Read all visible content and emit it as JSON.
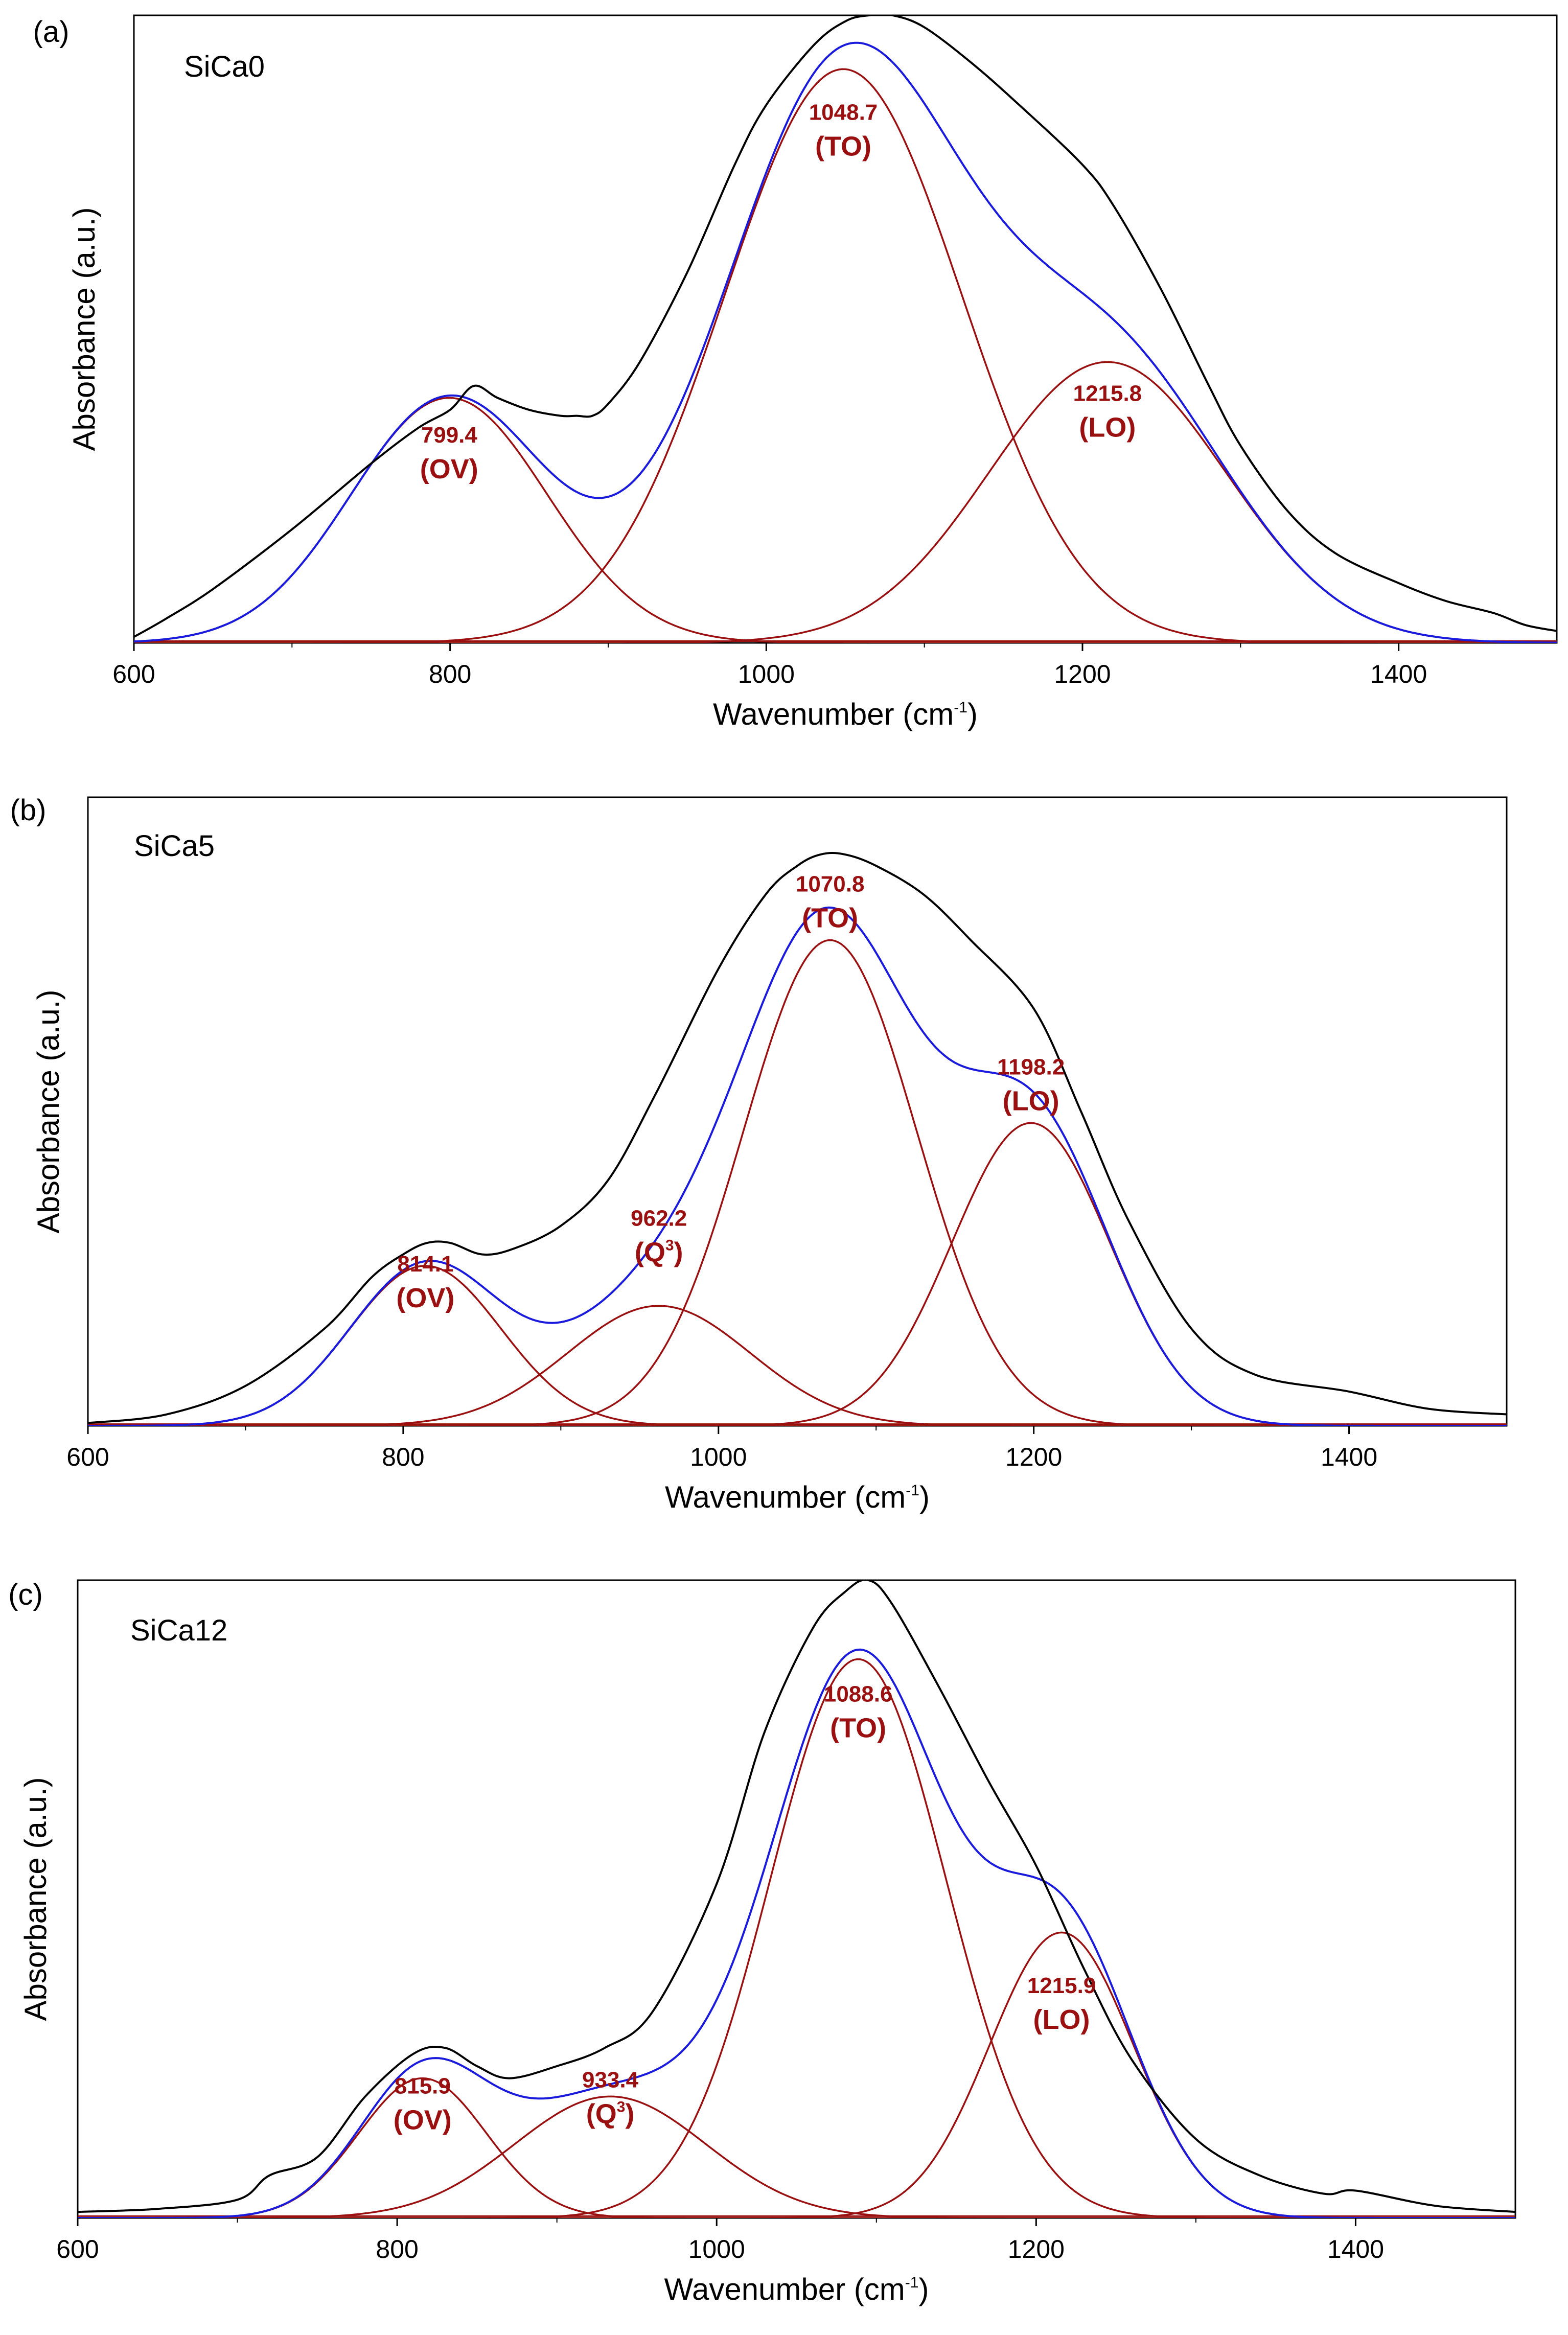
{
  "colors": {
    "measured": "#000000",
    "fit_envelope": "#1a1adc",
    "component": "#9a1010",
    "axis": "#000000"
  },
  "chart_data": [
    {
      "type": "line",
      "panel": "(a)",
      "sample": "SiCa0",
      "xlabel": "Wavenumber (cm",
      "xlabel_sup": "-1",
      "xlabel_end": ")",
      "ylabel": "Absorbance (a.u.)",
      "xlim": [
        600,
        1500
      ],
      "ylim": [
        0,
        1.05
      ],
      "xticks": [
        600,
        800,
        1000,
        1200,
        1400
      ],
      "xtick_labels": [
        "600",
        "800",
        "1000",
        "1200",
        "1400"
      ],
      "components": [
        {
          "center": 799.4,
          "height": 0.41,
          "sigma": 62,
          "label": "799.4",
          "tag": "(OV)",
          "tag_sup": ""
        },
        {
          "center": 1048.7,
          "height": 0.96,
          "sigma": 75,
          "label": "1048.7",
          "tag": "(TO)",
          "tag_sup": ""
        },
        {
          "center": 1215.8,
          "height": 0.47,
          "sigma": 75,
          "label": "1215.8",
          "tag": "(LO)",
          "tag_sup": ""
        }
      ],
      "measured": {
        "x": [
          600,
          620,
          650,
          700,
          750,
          780,
          800,
          815,
          830,
          850,
          870,
          880,
          890,
          900,
          920,
          950,
          980,
          1000,
          1030,
          1050,
          1065,
          1080,
          1100,
          1130,
          1160,
          1200,
          1220,
          1250,
          1280,
          1300,
          1330,
          1360,
          1400,
          1430,
          1460,
          1480,
          1500
        ],
        "y": [
          0.01,
          0.04,
          0.09,
          0.19,
          0.3,
          0.36,
          0.39,
          0.43,
          0.41,
          0.39,
          0.38,
          0.38,
          0.38,
          0.4,
          0.47,
          0.62,
          0.8,
          0.9,
          1.0,
          1.04,
          1.05,
          1.05,
          1.03,
          0.97,
          0.9,
          0.8,
          0.73,
          0.59,
          0.43,
          0.33,
          0.22,
          0.15,
          0.1,
          0.07,
          0.05,
          0.03,
          0.02
        ]
      },
      "annotation_anchors": [
        {
          "x": 799.4,
          "y": 0.335
        },
        {
          "x": 1048.7,
          "y": 0.875
        },
        {
          "x": 1215.8,
          "y": 0.405
        }
      ]
    },
    {
      "type": "line",
      "panel": "(b)",
      "sample": "SiCa5",
      "xlabel": "Wavenumber (cm",
      "xlabel_sup": "-1",
      "xlabel_end": ")",
      "ylabel": "Absorbance (a.u.)",
      "xlim": [
        600,
        1500
      ],
      "ylim": [
        0,
        1.1
      ],
      "xticks": [
        600,
        800,
        1000,
        1200,
        1400
      ],
      "xtick_labels": [
        "600",
        "800",
        "1000",
        "1200",
        "1400"
      ],
      "components": [
        {
          "center": 814.1,
          "height": 0.28,
          "sigma": 48,
          "label": "814.1",
          "tag": "(OV)",
          "tag_sup": ""
        },
        {
          "center": 962.2,
          "height": 0.21,
          "sigma": 58,
          "label": "962.2",
          "tag": "(Q",
          "tag_sup": "3",
          "tag_end": ")"
        },
        {
          "center": 1070.8,
          "height": 0.85,
          "sigma": 55,
          "label": "1070.8",
          "tag": "(TO)",
          "tag_sup": ""
        },
        {
          "center": 1198.2,
          "height": 0.53,
          "sigma": 50,
          "label": "1198.2",
          "tag": "(LO)",
          "tag_sup": ""
        }
      ],
      "measured": {
        "x": [
          600,
          650,
          700,
          750,
          780,
          800,
          815,
          830,
          850,
          870,
          900,
          930,
          960,
          1000,
          1030,
          1050,
          1065,
          1080,
          1100,
          1130,
          1160,
          1200,
          1230,
          1260,
          1300,
          1340,
          1400,
          1450,
          1500
        ],
        "y": [
          0.005,
          0.02,
          0.07,
          0.17,
          0.26,
          0.3,
          0.32,
          0.32,
          0.3,
          0.31,
          0.35,
          0.43,
          0.58,
          0.8,
          0.93,
          0.98,
          1.0,
          1.0,
          0.98,
          0.93,
          0.85,
          0.73,
          0.55,
          0.36,
          0.17,
          0.09,
          0.06,
          0.03,
          0.02
        ]
      },
      "annotation_anchors": [
        {
          "x": 814.1,
          "y": 0.27
        },
        {
          "x": 962.2,
          "y": 0.35
        },
        {
          "x": 1070.8,
          "y": 0.935
        },
        {
          "x": 1198.2,
          "y": 0.615
        }
      ]
    },
    {
      "type": "line",
      "panel": "(c)",
      "sample": "SiCa12",
      "xlabel": "Wavenumber (cm",
      "xlabel_sup": "-1",
      "xlabel_end": ")",
      "ylabel": "Absorbance (a.u.)",
      "xlim": [
        600,
        1500
      ],
      "ylim": [
        0,
        1.05
      ],
      "xticks": [
        600,
        800,
        1000,
        1200,
        1400
      ],
      "xtick_labels": [
        "600",
        "800",
        "1000",
        "1200",
        "1400"
      ],
      "components": [
        {
          "center": 815.9,
          "height": 0.23,
          "sigma": 40,
          "label": "815.9",
          "tag": "(OV)",
          "tag_sup": ""
        },
        {
          "center": 933.4,
          "height": 0.2,
          "sigma": 60,
          "label": "933.4",
          "tag": "(Q",
          "tag_sup": "3",
          "tag_end": ")"
        },
        {
          "center": 1088.6,
          "height": 0.92,
          "sigma": 55,
          "label": "1088.6",
          "tag": "(TO)",
          "tag_sup": ""
        },
        {
          "center": 1215.9,
          "height": 0.47,
          "sigma": 45,
          "label": "1215.9",
          "tag": "(LO)",
          "tag_sup": ""
        }
      ],
      "measured": {
        "x": [
          600,
          650,
          700,
          720,
          750,
          780,
          810,
          830,
          850,
          870,
          900,
          930,
          960,
          1000,
          1030,
          1060,
          1080,
          1095,
          1110,
          1140,
          1170,
          1200,
          1230,
          1260,
          1300,
          1340,
          1380,
          1400,
          1450,
          1500
        ],
        "y": [
          0.01,
          0.015,
          0.03,
          0.07,
          0.1,
          0.2,
          0.27,
          0.28,
          0.25,
          0.23,
          0.25,
          0.28,
          0.34,
          0.55,
          0.8,
          0.97,
          1.03,
          1.05,
          1.01,
          0.87,
          0.72,
          0.58,
          0.41,
          0.26,
          0.13,
          0.07,
          0.04,
          0.045,
          0.02,
          0.01
        ]
      },
      "annotation_anchors": [
        {
          "x": 815.9,
          "y": 0.205
        },
        {
          "x": 933.4,
          "y": 0.215
        },
        {
          "x": 1088.6,
          "y": 0.85
        },
        {
          "x": 1215.9,
          "y": 0.37
        }
      ]
    }
  ]
}
